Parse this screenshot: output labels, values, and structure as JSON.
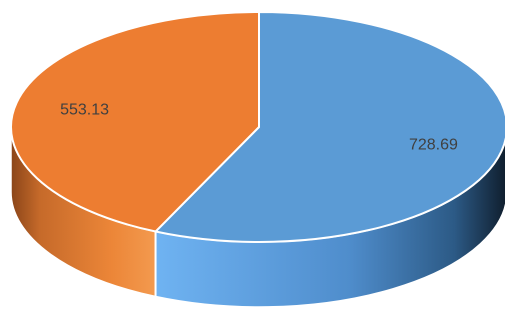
{
  "chart_data": {
    "type": "pie",
    "values": [
      728.69,
      553.13
    ],
    "labels": [
      "728.69",
      "553.13"
    ],
    "colors": [
      "#5b9bd5",
      "#ed7d31"
    ],
    "style": "3d",
    "legend": "none",
    "title": ""
  }
}
